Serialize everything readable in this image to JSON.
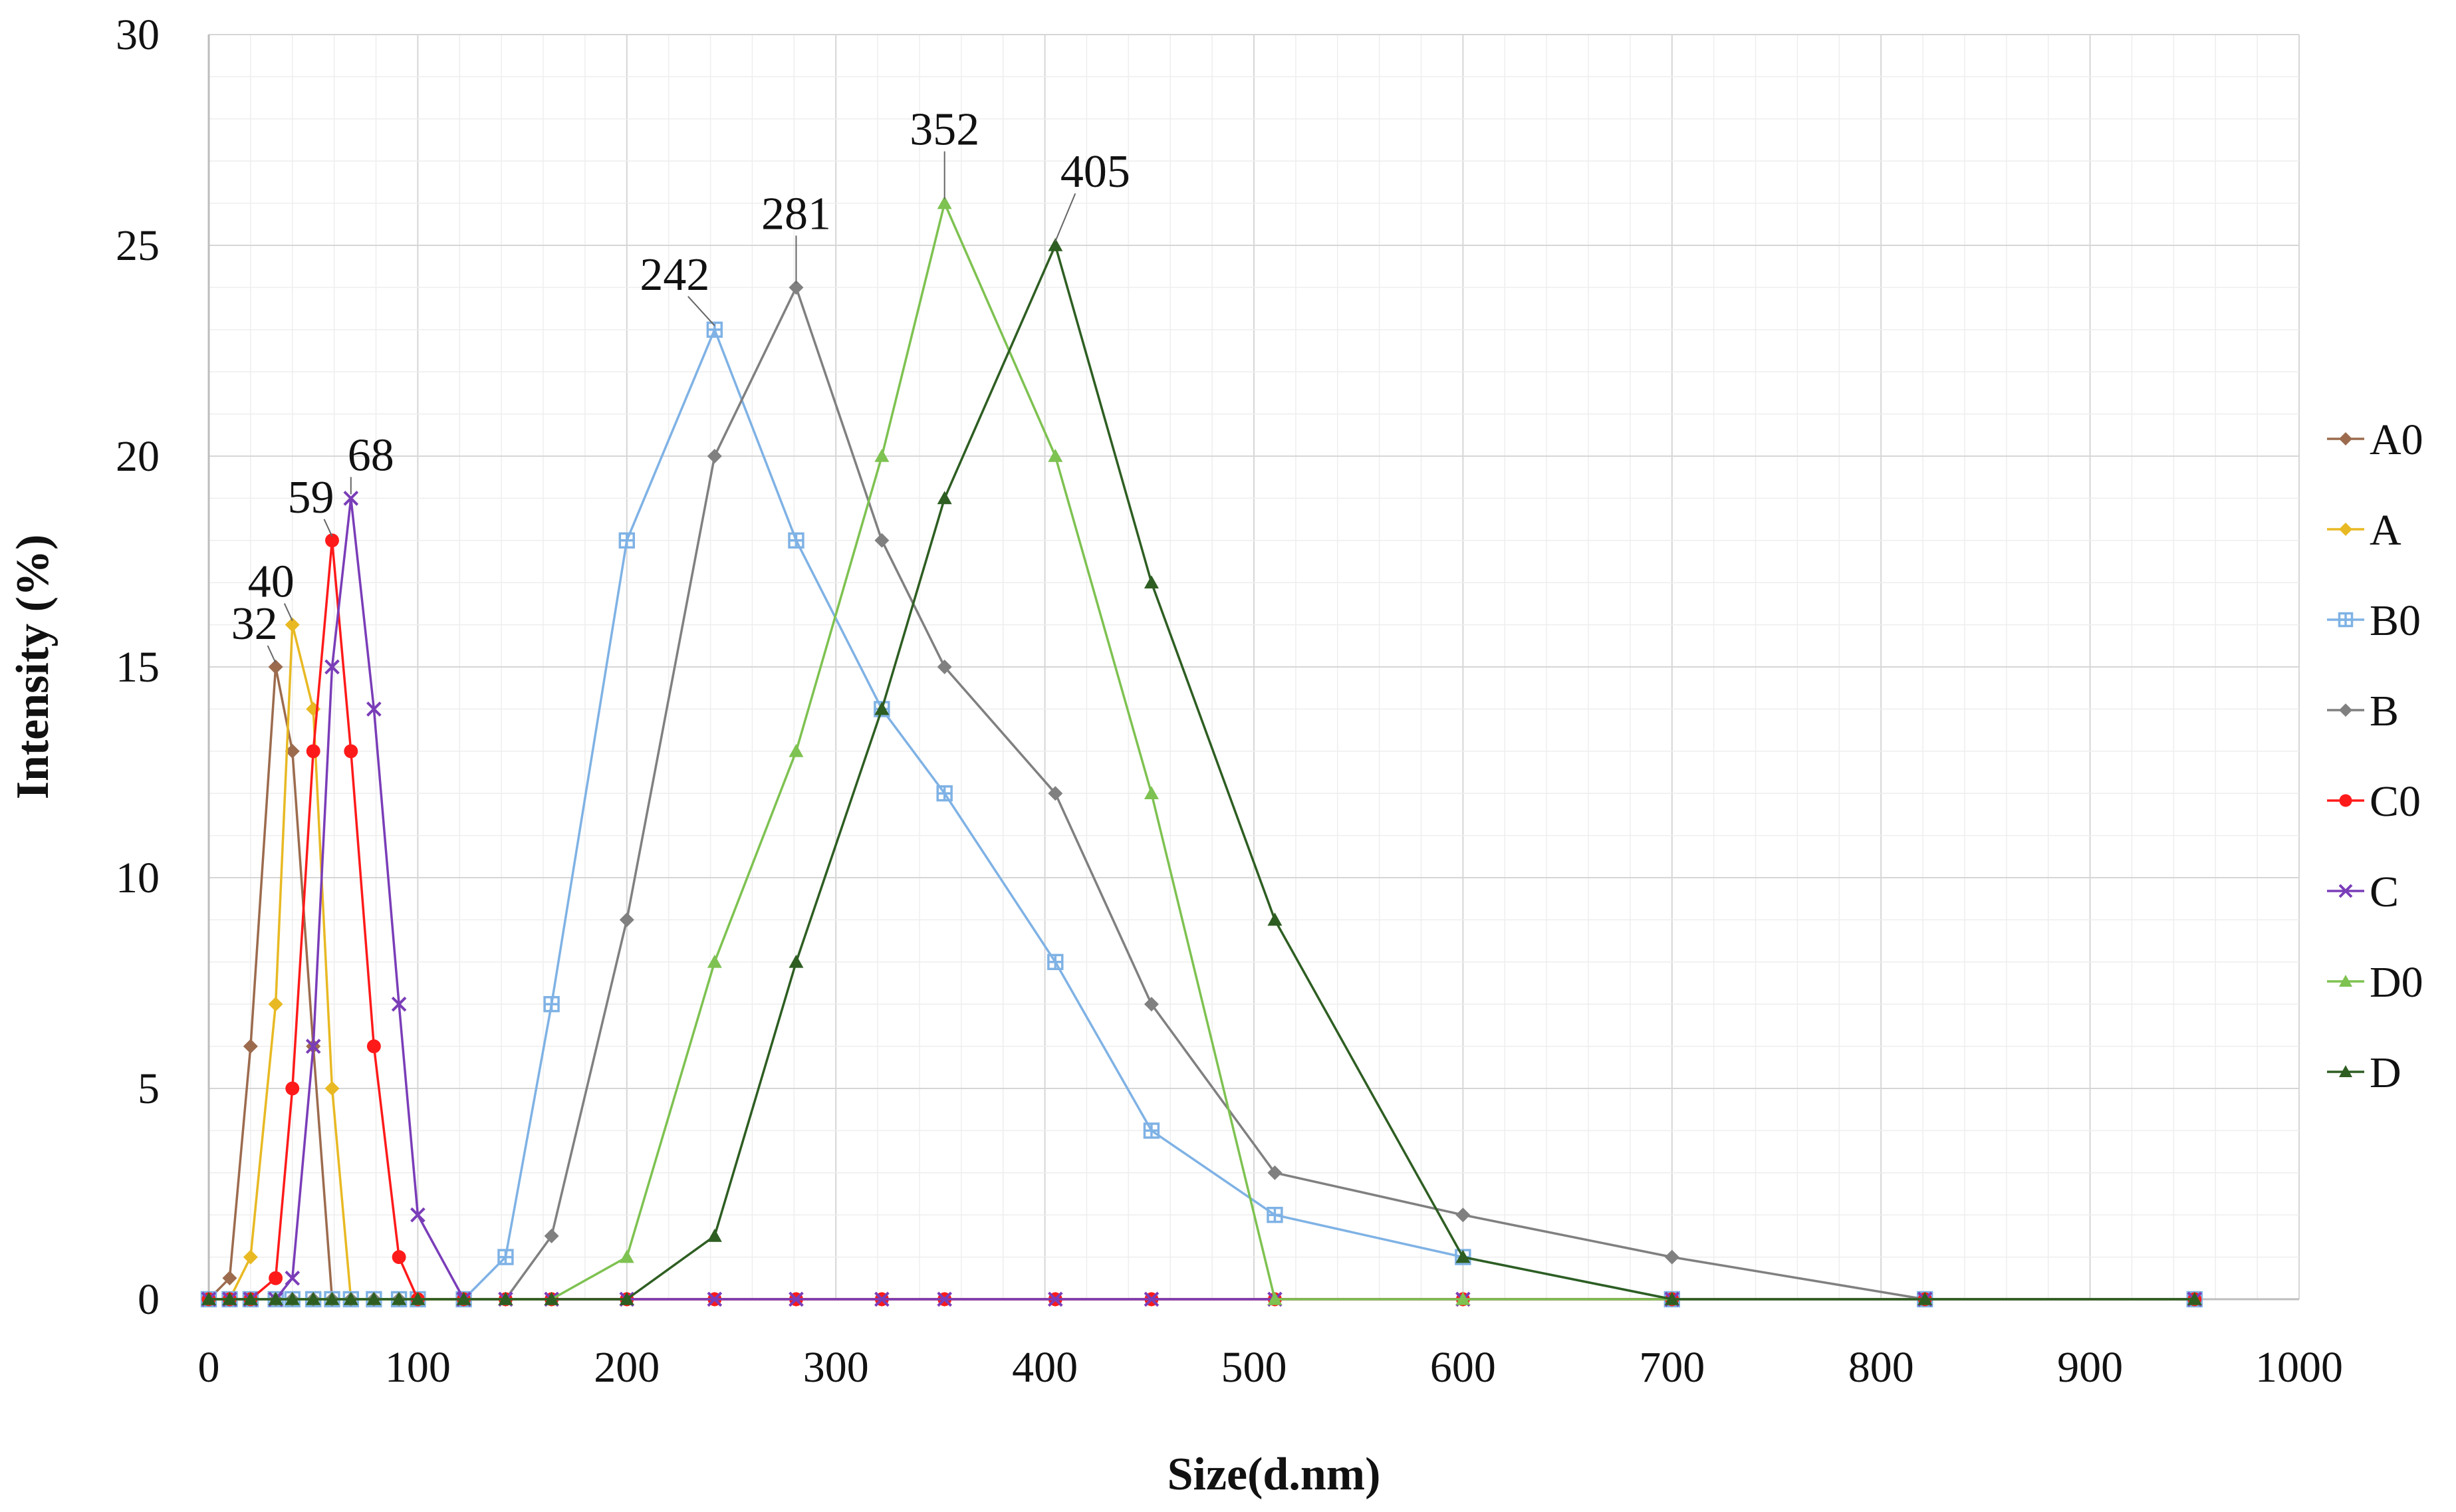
{
  "chart_data": {
    "type": "line",
    "title": "",
    "xlabel": "Size(d.nm)",
    "ylabel": "Intensity (%)",
    "xlim": [
      0,
      1000
    ],
    "ylim": [
      0,
      30
    ],
    "xticks": [
      0,
      100,
      200,
      300,
      400,
      500,
      600,
      700,
      800,
      900,
      1000
    ],
    "yticks": [
      0,
      5,
      10,
      15,
      20,
      25,
      30
    ],
    "grid": true,
    "legend_position": "right",
    "series": [
      {
        "name": "A0",
        "color": "#9C6B4E",
        "marker": "diamond",
        "x": [
          0,
          10,
          20,
          32,
          40,
          50,
          59,
          68,
          79,
          91,
          100,
          122,
          142,
          164,
          200,
          242,
          281,
          322,
          352,
          405,
          451,
          510,
          600,
          700,
          821,
          950
        ],
        "y": [
          0,
          0.5,
          6,
          15,
          13,
          6,
          0,
          0,
          0,
          0,
          0,
          0,
          0,
          0,
          0,
          0,
          0,
          0,
          0,
          0,
          0,
          0,
          0,
          0,
          0,
          0
        ]
      },
      {
        "name": "A",
        "color": "#E8B923",
        "marker": "diamond",
        "x": [
          0,
          10,
          20,
          32,
          40,
          50,
          59,
          68,
          79,
          91,
          100,
          122,
          142,
          164,
          200,
          242,
          281,
          322,
          352,
          405,
          451,
          510,
          600,
          700,
          821,
          950
        ],
        "y": [
          0,
          0,
          1,
          7,
          16,
          14,
          5,
          0,
          0,
          0,
          0,
          0,
          0,
          0,
          0,
          0,
          0,
          0,
          0,
          0,
          0,
          0,
          0,
          0,
          0,
          0
        ]
      },
      {
        "name": "B0",
        "color": "#7FB2E5",
        "marker": "square-plus",
        "x": [
          0,
          10,
          20,
          32,
          40,
          50,
          59,
          68,
          79,
          91,
          100,
          122,
          142,
          164,
          200,
          242,
          281,
          322,
          352,
          405,
          451,
          510,
          600,
          700,
          821,
          950
        ],
        "y": [
          0,
          0,
          0,
          0,
          0,
          0,
          0,
          0,
          0,
          0,
          0,
          0,
          1,
          7,
          18,
          23,
          18,
          14,
          12,
          8,
          4,
          2,
          1,
          0,
          0,
          0
        ]
      },
      {
        "name": "B",
        "color": "#808080",
        "marker": "diamond",
        "x": [
          0,
          10,
          20,
          32,
          40,
          50,
          59,
          68,
          79,
          91,
          100,
          122,
          142,
          164,
          200,
          242,
          281,
          322,
          352,
          405,
          451,
          510,
          600,
          700,
          821,
          950
        ],
        "y": [
          0,
          0,
          0,
          0,
          0,
          0,
          0,
          0,
          0,
          0,
          0,
          0,
          0,
          1.5,
          9,
          20,
          24,
          18,
          15,
          12,
          7,
          3,
          2,
          1,
          0,
          0
        ]
      },
      {
        "name": "C0",
        "color": "#FF1A1A",
        "marker": "circle",
        "x": [
          0,
          10,
          20,
          32,
          40,
          50,
          59,
          68,
          79,
          91,
          100,
          122,
          142,
          164,
          200,
          242,
          281,
          322,
          352,
          405,
          451,
          510,
          600,
          700,
          821,
          950
        ],
        "y": [
          0,
          0,
          0,
          0.5,
          5,
          13,
          18,
          13,
          6,
          1,
          0,
          0,
          0,
          0,
          0,
          0,
          0,
          0,
          0,
          0,
          0,
          0,
          0,
          0,
          0,
          0
        ]
      },
      {
        "name": "C",
        "color": "#7A3DB8",
        "marker": "cross",
        "x": [
          0,
          10,
          20,
          32,
          40,
          50,
          59,
          68,
          79,
          91,
          100,
          122,
          142,
          164,
          200,
          242,
          281,
          322,
          352,
          405,
          451,
          510,
          600,
          700,
          821,
          950
        ],
        "y": [
          0,
          0,
          0,
          0,
          0.5,
          6,
          15,
          19,
          14,
          7,
          2,
          0,
          0,
          0,
          0,
          0,
          0,
          0,
          0,
          0,
          0,
          0,
          0,
          0,
          0,
          0
        ]
      },
      {
        "name": "D0",
        "color": "#7EC251",
        "marker": "triangle",
        "x": [
          0,
          10,
          20,
          32,
          40,
          50,
          59,
          68,
          79,
          91,
          100,
          122,
          142,
          164,
          200,
          242,
          281,
          322,
          352,
          405,
          451,
          510,
          600,
          700,
          821,
          950
        ],
        "y": [
          0,
          0,
          0,
          0,
          0,
          0,
          0,
          0,
          0,
          0,
          0,
          0,
          0,
          0,
          1,
          8,
          13,
          20,
          26,
          20,
          12,
          0,
          0,
          0,
          0,
          0
        ]
      },
      {
        "name": "D",
        "color": "#2E5E22",
        "marker": "triangle",
        "x": [
          0,
          10,
          20,
          32,
          40,
          50,
          59,
          68,
          79,
          91,
          100,
          122,
          142,
          164,
          200,
          242,
          281,
          322,
          352,
          405,
          451,
          510,
          600,
          700,
          821,
          950
        ],
        "y": [
          0,
          0,
          0,
          0,
          0,
          0,
          0,
          0,
          0,
          0,
          0,
          0,
          0,
          0,
          0,
          1.5,
          8,
          14,
          19,
          25,
          17,
          9,
          1,
          0,
          0,
          0
        ]
      }
    ],
    "annotations": [
      {
        "text": "32",
        "x": 32,
        "y": 15
      },
      {
        "text": "40",
        "x": 40,
        "y": 16
      },
      {
        "text": "59",
        "x": 59,
        "y": 18
      },
      {
        "text": "68",
        "x": 68,
        "y": 19
      },
      {
        "text": "242",
        "x": 242,
        "y": 23
      },
      {
        "text": "281",
        "x": 281,
        "y": 24
      },
      {
        "text": "352",
        "x": 352,
        "y": 26
      },
      {
        "text": "405",
        "x": 405,
        "y": 25
      }
    ]
  }
}
